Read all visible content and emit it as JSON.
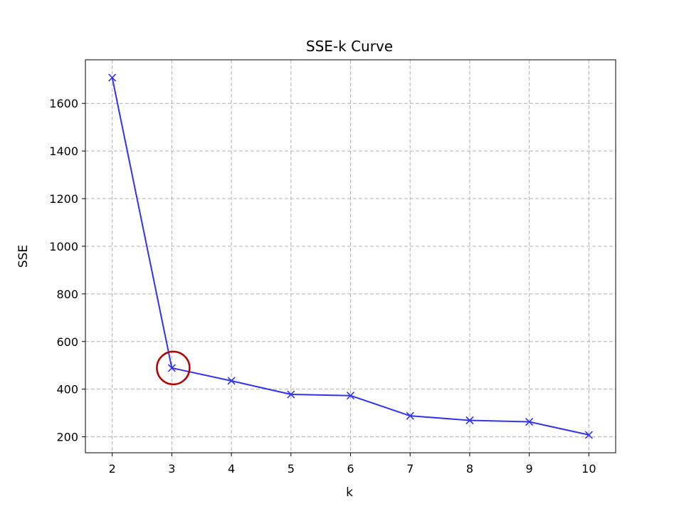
{
  "chart_data": {
    "type": "line",
    "title": "SSE-k Curve",
    "xlabel": "k",
    "ylabel": "SSE",
    "x": [
      2,
      3,
      4,
      5,
      6,
      7,
      8,
      9,
      10
    ],
    "series": [
      {
        "values": [
          1708,
          489,
          435,
          378,
          373,
          288,
          269,
          263,
          208
        ],
        "color": "#3333ee",
        "marker": "x"
      }
    ],
    "xticks": [
      2,
      3,
      4,
      5,
      6,
      7,
      8,
      9,
      10
    ],
    "yticks": [
      200,
      400,
      600,
      800,
      1000,
      1200,
      1400,
      1600
    ],
    "xlim": [
      1.55,
      10.45
    ],
    "ylim": [
      133,
      1783
    ],
    "grid": true,
    "highlight": {
      "x": 3,
      "y": 489,
      "shape": "circle",
      "color": "#b30000"
    }
  }
}
